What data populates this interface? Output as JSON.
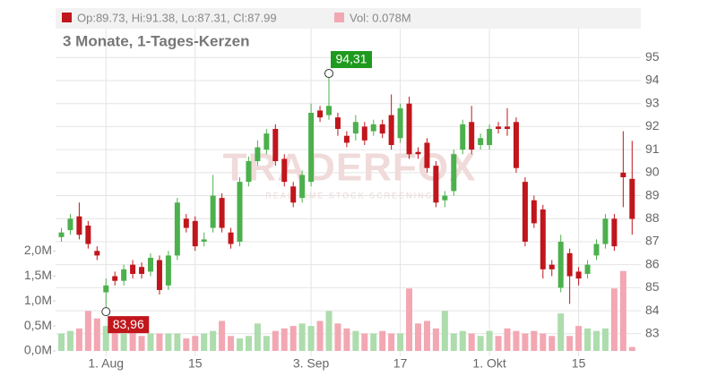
{
  "chart_data": {
    "type": "candlestick",
    "title": "3 Monate, 1-Tages-Kerzen",
    "ohlc_label": "Op:89.73, Hi:91.38, Lo:87.31, Cl:87.99",
    "volume_label": "Vol: 0.078M",
    "watermark": "TRADERFOX",
    "watermark_sub": "REAL-TIME STOCK SCREENING",
    "max_label": "94,31",
    "min_label": "83,96",
    "categories": [
      null,
      null,
      null,
      null,
      null,
      "1. Aug",
      null,
      null,
      null,
      null,
      null,
      null,
      null,
      null,
      null,
      "15",
      null,
      null,
      null,
      null,
      null,
      null,
      null,
      null,
      null,
      null,
      null,
      null,
      "3. Sep",
      null,
      null,
      null,
      null,
      null,
      null,
      null,
      null,
      null,
      "17",
      null,
      null,
      null,
      null,
      null,
      null,
      null,
      null,
      null,
      "1. Okt",
      null,
      null,
      null,
      null,
      null,
      null,
      null,
      null,
      null,
      "15",
      null,
      null,
      null,
      null,
      null,
      null
    ],
    "open": [
      87.2,
      87.5,
      88.1,
      87.7,
      86.6,
      84.8,
      85.5,
      85.3,
      86.0,
      85.9,
      85.7,
      86.2,
      85.1,
      86.4,
      88.0,
      87.9,
      87.0,
      87.6,
      88.9,
      87.4,
      87.0,
      89.6,
      90.5,
      91.0,
      91.9,
      90.6,
      89.4,
      88.9,
      89.6,
      92.7,
      92.5,
      92.4,
      91.6,
      91.7,
      92.0,
      91.8,
      92.1,
      92.5,
      91.5,
      93.0,
      90.9,
      91.3,
      90.3,
      88.8,
      89.2,
      91.0,
      92.2,
      91.2,
      91.2,
      92.0,
      92.0,
      92.2,
      89.6,
      88.8,
      88.4,
      86.0,
      85.0,
      86.5,
      85.7,
      85.6,
      86.4,
      86.9,
      88.0,
      90.0,
      89.73
    ],
    "high": [
      87.6,
      88.2,
      88.7,
      87.9,
      86.8,
      85.4,
      85.7,
      86.0,
      86.2,
      86.1,
      86.5,
      86.4,
      86.6,
      88.9,
      88.2,
      88.1,
      87.4,
      89.9,
      89.1,
      87.6,
      89.8,
      90.7,
      91.4,
      91.9,
      92.1,
      90.8,
      89.6,
      90.1,
      93.0,
      92.9,
      94.31,
      92.6,
      91.8,
      92.5,
      92.2,
      92.3,
      92.3,
      93.4,
      93.0,
      93.3,
      91.1,
      91.5,
      90.5,
      89.2,
      91.0,
      92.3,
      92.9,
      91.7,
      92.1,
      92.2,
      92.8,
      92.4,
      89.8,
      89.0,
      88.6,
      86.2,
      87.3,
      86.7,
      85.9,
      86.2,
      87.1,
      88.2,
      88.2,
      91.8,
      91.38
    ],
    "low": [
      87.0,
      87.3,
      87.1,
      86.7,
      86.2,
      83.96,
      85.1,
      85.1,
      85.4,
      85.4,
      85.5,
      84.7,
      84.9,
      86.2,
      87.4,
      86.6,
      86.8,
      87.4,
      87.4,
      86.7,
      86.8,
      89.4,
      90.3,
      90.8,
      90.3,
      89.4,
      88.5,
      88.7,
      89.4,
      92.2,
      92.3,
      91.6,
      91.1,
      91.4,
      91.2,
      91.6,
      91.5,
      91.0,
      91.3,
      90.6,
      90.6,
      90.0,
      88.5,
      88.5,
      89.0,
      90.8,
      90.8,
      91.0,
      91.0,
      91.7,
      91.6,
      90.0,
      86.8,
      87.6,
      85.4,
      85.5,
      84.8,
      84.3,
      85.1,
      85.4,
      86.2,
      86.7,
      86.6,
      88.5,
      87.31
    ],
    "close": [
      87.4,
      88.0,
      87.3,
      86.9,
      86.4,
      85.1,
      85.3,
      85.8,
      85.6,
      85.6,
      86.3,
      84.9,
      86.4,
      88.7,
      87.6,
      86.8,
      87.1,
      89.0,
      87.6,
      86.9,
      89.6,
      90.5,
      91.1,
      91.7,
      90.5,
      89.6,
      88.7,
      89.9,
      92.6,
      92.4,
      92.9,
      91.9,
      91.3,
      92.2,
      91.4,
      92.1,
      91.7,
      91.2,
      92.8,
      90.8,
      90.8,
      90.2,
      88.7,
      89.0,
      90.8,
      92.1,
      91.0,
      91.5,
      91.9,
      91.9,
      91.9,
      90.2,
      87.0,
      87.8,
      85.8,
      85.8,
      87.0,
      85.5,
      85.4,
      86.0,
      86.9,
      88.0,
      86.8,
      89.8,
      87.99
    ],
    "volume": [
      0.35,
      0.4,
      0.45,
      0.8,
      0.65,
      0.5,
      0.4,
      0.35,
      0.4,
      0.3,
      0.35,
      0.35,
      0.35,
      0.35,
      0.25,
      0.3,
      0.35,
      0.4,
      0.6,
      0.3,
      0.25,
      0.3,
      0.55,
      0.3,
      0.4,
      0.45,
      0.5,
      0.55,
      0.5,
      0.6,
      0.8,
      0.55,
      0.45,
      0.4,
      0.35,
      0.35,
      0.4,
      0.35,
      0.35,
      1.25,
      0.55,
      0.6,
      0.45,
      0.8,
      0.35,
      0.4,
      0.35,
      0.3,
      0.4,
      0.3,
      0.45,
      0.4,
      0.35,
      0.4,
      0.35,
      0.3,
      0.75,
      0.3,
      0.5,
      0.45,
      0.4,
      0.45,
      1.25,
      1.6,
      0.078
    ],
    "up_color": "#4cb04c",
    "down_color": "#c0161c",
    "volume_up_color": "#addcad",
    "volume_down_color": "#f2a7b2",
    "ylim": [
      82.02,
      97.19
    ],
    "yticks": [
      83,
      84,
      85,
      86,
      87,
      88,
      89,
      90,
      91,
      92,
      93,
      94,
      95
    ],
    "y2lim": [
      0,
      6.88
    ],
    "y2ticks": [
      {
        "value": 0,
        "label": "0,0M"
      },
      {
        "value": 0.5,
        "label": "0,5M"
      },
      {
        "value": 1,
        "label": "1,0M"
      },
      {
        "value": 1.5,
        "label": "1,5M"
      },
      {
        "value": 2,
        "label": "2,0M"
      }
    ],
    "grid": true
  }
}
